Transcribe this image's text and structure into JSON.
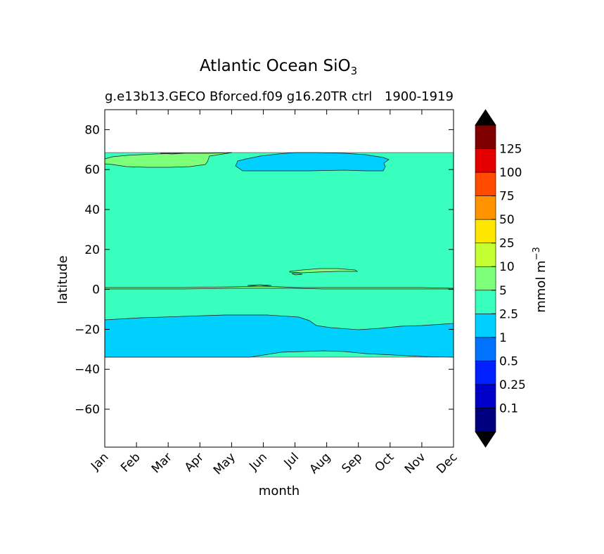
{
  "chart_data": {
    "type": "contour",
    "title": "Atlantic Ocean SiO",
    "title_subscript": "3",
    "subtitle_left": "g.e13b13.GECO Bforced.f09 g16.20TR ctrl",
    "subtitle_right": "1900-1919",
    "xlabel": "month",
    "ylabel": "latitude",
    "x_categories": [
      "Jan",
      "Feb",
      "Mar",
      "Apr",
      "May",
      "Jun",
      "Jul",
      "Aug",
      "Sep",
      "Oct",
      "Nov",
      "Dec"
    ],
    "y_ticks": [
      80,
      60,
      40,
      20,
      0,
      -20,
      -40,
      -60
    ],
    "y_tick_labels": [
      "80",
      "60",
      "40",
      "20",
      "0",
      "−20",
      "−40",
      "−60"
    ],
    "ylim": [
      -79,
      90
    ],
    "data_extent_lat": [
      -34,
      68.5
    ],
    "grid": false,
    "colorbar": {
      "label": "mmol m",
      "label_superscript": "−3",
      "levels": [
        "0.1",
        "0.25",
        "0.5",
        "1",
        "2.5",
        "5",
        "10",
        "25",
        "50",
        "75",
        "100",
        "125"
      ],
      "colors": [
        "#00007f",
        "#0000c8",
        "#0020ff",
        "#0074ff",
        "#00d0ff",
        "#39ffbe",
        "#7dff7a",
        "#c3ff33",
        "#ffe600",
        "#ff9400",
        "#ff4a00",
        "#e40000",
        "#7f0000"
      ],
      "extend_low_color": "#000000",
      "extend_high_color": "#000000"
    },
    "regions": [
      {
        "name": "background",
        "value_range": "2.5-5",
        "color": "#39ffbe"
      },
      {
        "name": "south-atlantic-low",
        "value_range": "1-2.5",
        "color": "#00d0ff",
        "lat_range": [
          -34,
          -13
        ]
      },
      {
        "name": "subpolar-low",
        "value_range": "1-2.5",
        "color": "#00d0ff",
        "lat_range": [
          58,
          68.5
        ],
        "months": [
          "Jun",
          "Sep"
        ]
      },
      {
        "name": "nordic-high",
        "value_range": "5-10",
        "color": "#7dff7a",
        "lat_range": [
          60,
          68.5
        ],
        "months": [
          "Jan",
          "May"
        ]
      },
      {
        "name": "equatorial-high",
        "value_range": "5-10",
        "color": "#7dff7a",
        "lat_range": [
          7,
          10
        ],
        "months": [
          "Jul",
          "Sep"
        ]
      }
    ]
  }
}
